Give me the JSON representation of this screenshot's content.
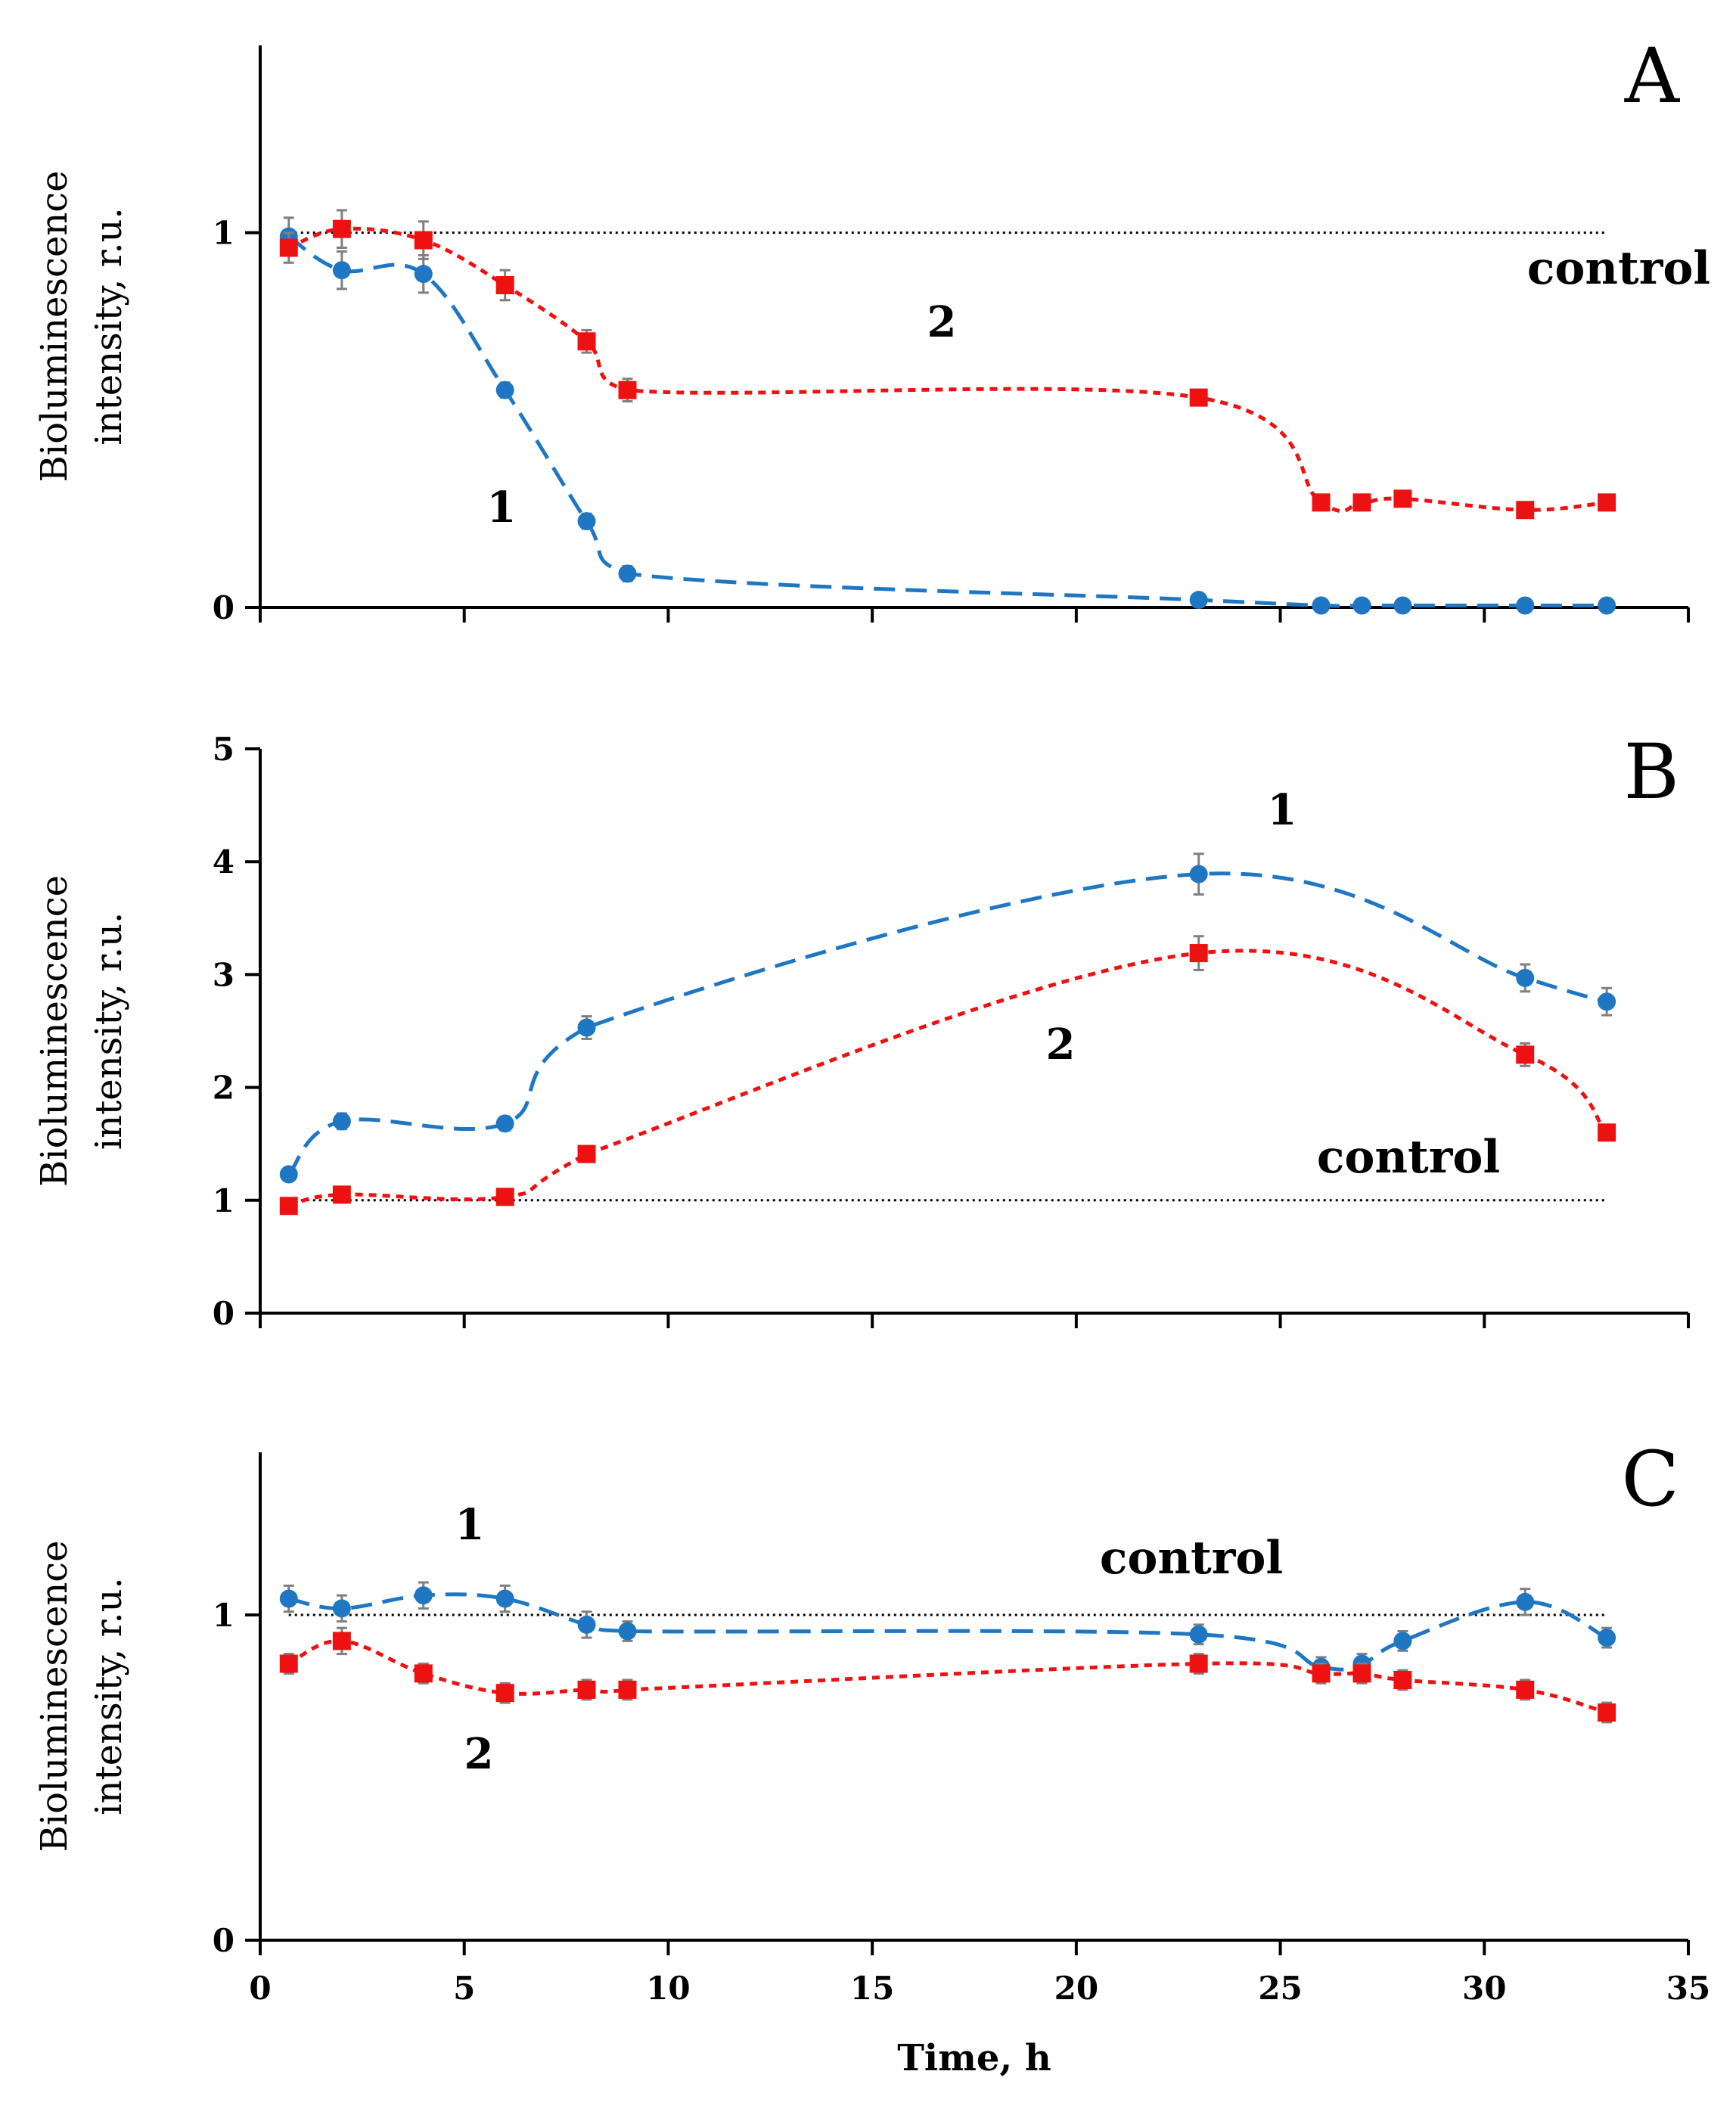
{
  "chart_data": [
    {
      "type": "line",
      "panel_label": "A",
      "ylabel_line1": "Bioluminescence",
      "ylabel_line2": "intensity, r.u.",
      "xlim": [
        0,
        35
      ],
      "ylim": [
        0,
        1.5
      ],
      "yticks": [
        0,
        1
      ],
      "control": {
        "label": "control",
        "y": 1
      },
      "series": [
        {
          "label": "1",
          "color": "#1f77c4",
          "style": "long-dash",
          "marker": "circle",
          "x": [
            0.7,
            2,
            4,
            6,
            8,
            9,
            23,
            26,
            27,
            28,
            31,
            33
          ],
          "y": [
            0.99,
            0.9,
            0.89,
            0.58,
            0.23,
            0.09,
            0.02,
            0.005,
            0.005,
            0.005,
            0.005,
            0.005
          ],
          "err": [
            0.05,
            0.05,
            0.05,
            0.02,
            0.02,
            0.02,
            0.01,
            0.01,
            0.01,
            0.01,
            0.01,
            0.01
          ]
        },
        {
          "label": "2",
          "color": "#ee1111",
          "style": "short-dash",
          "marker": "square",
          "x": [
            0.7,
            2,
            4,
            6,
            8,
            9,
            23,
            26,
            27,
            28,
            31,
            33
          ],
          "y": [
            0.96,
            1.01,
            0.98,
            0.86,
            0.71,
            0.58,
            0.56,
            0.28,
            0.28,
            0.29,
            0.26,
            0.28
          ],
          "err": [
            0.04,
            0.05,
            0.05,
            0.04,
            0.03,
            0.03,
            0.02,
            0.02,
            0.02,
            0.02,
            0.02,
            0.02
          ]
        }
      ]
    },
    {
      "type": "line",
      "panel_label": "B",
      "ylabel_line1": "Bioluminescence",
      "ylabel_line2": "intensity, r.u.",
      "xlim": [
        0,
        35
      ],
      "ylim": [
        0,
        5
      ],
      "yticks": [
        0,
        1,
        2,
        3,
        4,
        5
      ],
      "control": {
        "label": "control",
        "y": 1
      },
      "series": [
        {
          "label": "1",
          "color": "#1f77c4",
          "style": "long-dash",
          "marker": "circle",
          "x": [
            0.7,
            2,
            6,
            8,
            23,
            31,
            33
          ],
          "y": [
            1.23,
            1.7,
            1.68,
            2.53,
            3.89,
            2.97,
            2.76
          ],
          "err": [
            0.05,
            0.07,
            0.06,
            0.1,
            0.18,
            0.12,
            0.12
          ]
        },
        {
          "label": "2",
          "color": "#ee1111",
          "style": "short-dash",
          "marker": "square",
          "x": [
            0.7,
            2,
            6,
            8,
            23,
            31,
            33
          ],
          "y": [
            0.95,
            1.05,
            1.03,
            1.41,
            3.19,
            2.29,
            1.6
          ],
          "err": [
            0.03,
            0.04,
            0.04,
            0.05,
            0.15,
            0.1,
            0.05
          ]
        }
      ]
    },
    {
      "type": "line",
      "panel_label": "C",
      "ylabel_line1": "Bioluminescence",
      "ylabel_line2": "intensity, r.u.",
      "xlabel": "Time, h",
      "xlim": [
        0,
        35
      ],
      "ylim": [
        0,
        1.5
      ],
      "yticks": [
        0,
        1
      ],
      "xticks": [
        0,
        5,
        10,
        15,
        20,
        25,
        30,
        35
      ],
      "control": {
        "label": "control",
        "y": 1
      },
      "series": [
        {
          "label": "1",
          "color": "#1f77c4",
          "style": "long-dash",
          "marker": "circle",
          "x": [
            0.7,
            2,
            4,
            6,
            8,
            9,
            23,
            26,
            27,
            28,
            31,
            33
          ],
          "y": [
            1.05,
            1.02,
            1.06,
            1.05,
            0.97,
            0.95,
            0.94,
            0.84,
            0.85,
            0.92,
            1.04,
            0.93
          ],
          "err": [
            0.04,
            0.04,
            0.04,
            0.04,
            0.04,
            0.03,
            0.03,
            0.03,
            0.03,
            0.03,
            0.04,
            0.03
          ]
        },
        {
          "label": "2",
          "color": "#ee1111",
          "style": "short-dash",
          "marker": "square",
          "x": [
            0.7,
            2,
            4,
            6,
            8,
            9,
            23,
            26,
            27,
            28,
            31,
            33
          ],
          "y": [
            0.85,
            0.92,
            0.82,
            0.76,
            0.77,
            0.77,
            0.85,
            0.82,
            0.82,
            0.8,
            0.77,
            0.7
          ],
          "err": [
            0.03,
            0.04,
            0.03,
            0.03,
            0.03,
            0.03,
            0.03,
            0.03,
            0.03,
            0.03,
            0.03,
            0.03
          ]
        }
      ]
    }
  ]
}
